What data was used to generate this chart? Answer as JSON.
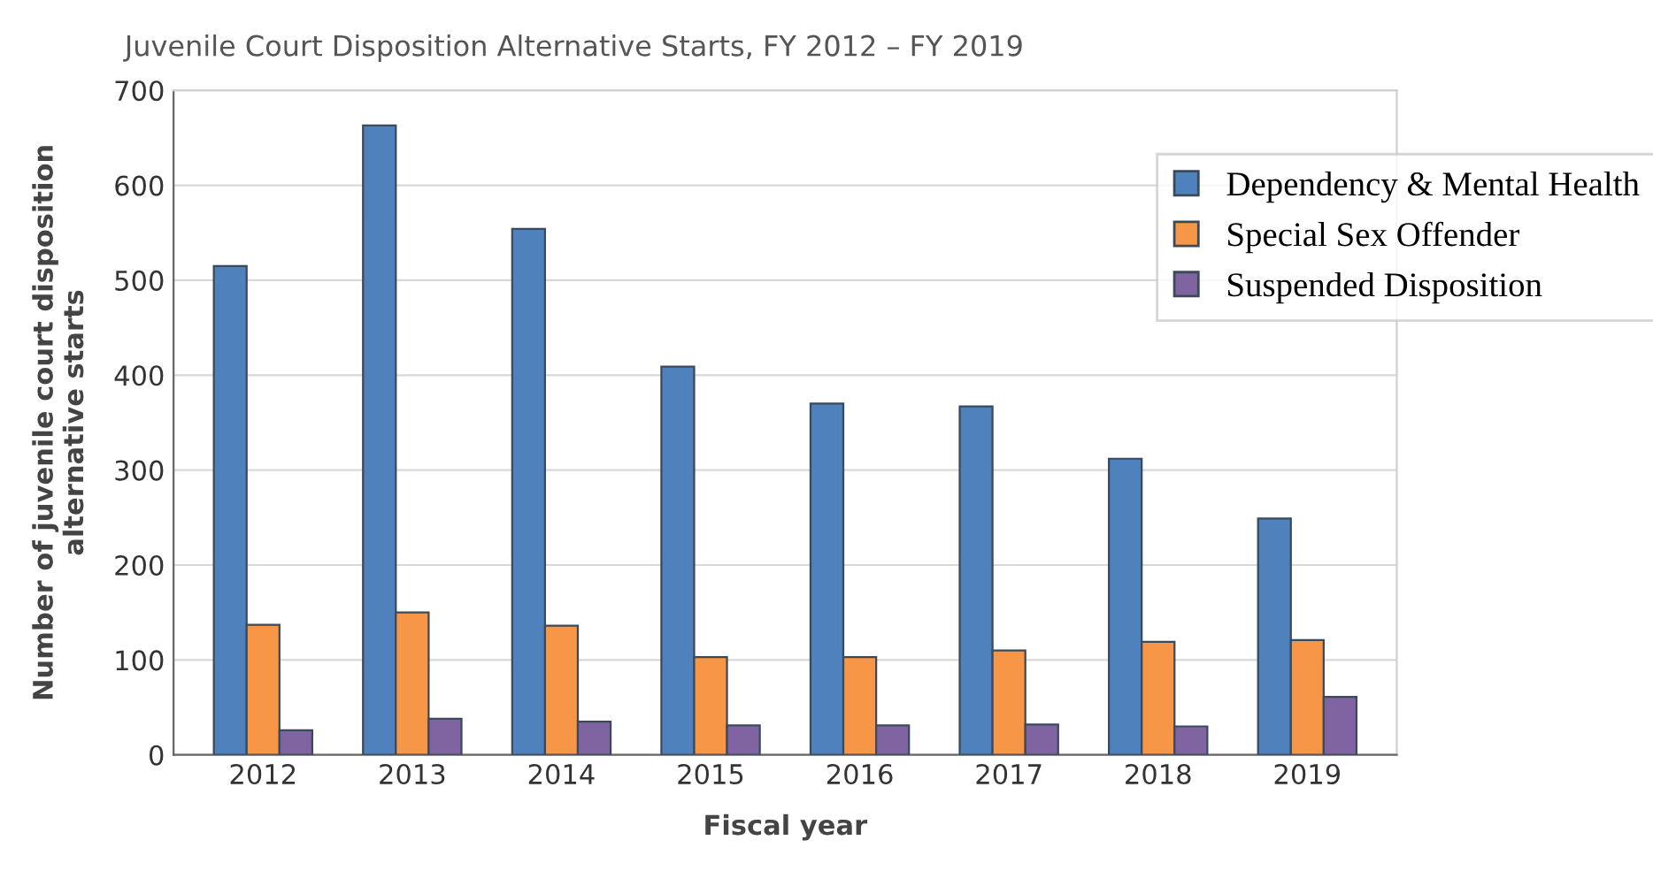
{
  "chart_data": {
    "type": "bar",
    "title": "Juvenile Court Disposition Alternative Starts, FY 2012 – FY 2019",
    "xlabel": "Fiscal year",
    "ylabel": "Number of juvenile court disposition\nalternative starts",
    "categories": [
      "2012",
      "2013",
      "2014",
      "2015",
      "2016",
      "2017",
      "2018",
      "2019"
    ],
    "series": [
      {
        "name": "Dependency & Mental Health",
        "color": "#4f81bd",
        "values": [
          515,
          663,
          554,
          409,
          370,
          367,
          312,
          249
        ]
      },
      {
        "name": "Special Sex Offender",
        "color": "#f79646",
        "values": [
          137,
          150,
          136,
          103,
          103,
          110,
          119,
          121
        ]
      },
      {
        "name": "Suspended Disposition",
        "color": "#8064a2",
        "values": [
          26,
          38,
          35,
          31,
          31,
          32,
          30,
          61
        ]
      }
    ],
    "ylim": [
      0,
      700
    ],
    "yticks": [
      0,
      100,
      200,
      300,
      400,
      500,
      600,
      700
    ],
    "grid": "y",
    "legend": "top right"
  }
}
